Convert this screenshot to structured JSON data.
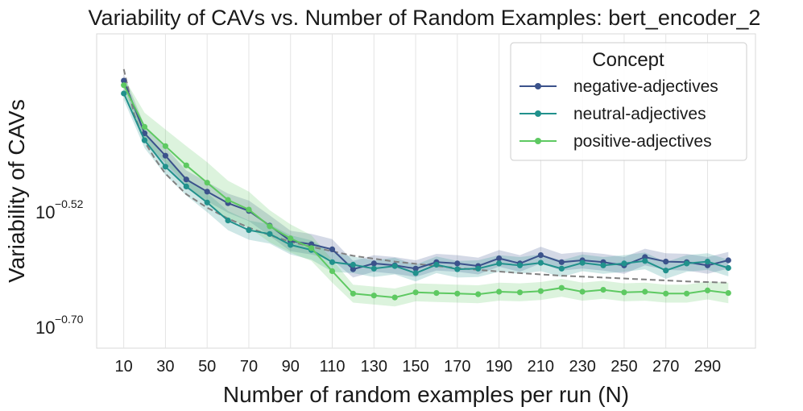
{
  "chart_data": {
    "type": "line",
    "title": "Variability of CAVs vs. Number of Random Examples: bert_encoder_2",
    "xlabel": "Number of random examples per run (N)",
    "ylabel": "Variability of CAVs",
    "yscale": "log10",
    "ylim_log10": [
      -0.735,
      -0.245
    ],
    "xlim": [
      -3,
      313
    ],
    "xticks": [
      10,
      30,
      50,
      70,
      90,
      110,
      130,
      150,
      170,
      190,
      210,
      230,
      250,
      270,
      290
    ],
    "yticks": [
      {
        "value_log10": -0.52,
        "base": "10",
        "exponent": "−0.52"
      },
      {
        "value_log10": -0.7,
        "base": "10",
        "exponent": "−0.70"
      }
    ],
    "grid": true,
    "x": [
      10,
      20,
      30,
      40,
      50,
      60,
      70,
      80,
      90,
      100,
      110,
      120,
      130,
      140,
      150,
      160,
      170,
      180,
      190,
      200,
      210,
      220,
      230,
      240,
      250,
      260,
      270,
      280,
      290,
      300
    ],
    "series": [
      {
        "name": "negative-adjectives",
        "color": "#3b528b",
        "log10_values": [
          -0.318,
          -0.4,
          -0.435,
          -0.472,
          -0.491,
          -0.509,
          -0.521,
          -0.544,
          -0.568,
          -0.573,
          -0.581,
          -0.612,
          -0.603,
          -0.606,
          -0.611,
          -0.601,
          -0.603,
          -0.607,
          -0.595,
          -0.603,
          -0.59,
          -0.601,
          -0.598,
          -0.601,
          -0.606,
          -0.593,
          -0.6,
          -0.601,
          -0.606,
          -0.598
        ],
        "band_halfwidth": [
          0.01,
          0.012,
          0.013,
          0.014,
          0.015,
          0.015,
          0.016,
          0.016,
          0.016,
          0.016,
          0.016,
          0.013,
          0.013,
          0.013,
          0.013,
          0.013,
          0.013,
          0.013,
          0.013,
          0.013,
          0.013,
          0.013,
          0.013,
          0.013,
          0.013,
          0.013,
          0.013,
          0.013,
          0.013,
          0.013
        ]
      },
      {
        "name": "neutral-adjectives",
        "color": "#21918c",
        "log10_values": [
          -0.338,
          -0.411,
          -0.452,
          -0.483,
          -0.508,
          -0.536,
          -0.551,
          -0.557,
          -0.574,
          -0.582,
          -0.601,
          -0.605,
          -0.611,
          -0.607,
          -0.618,
          -0.605,
          -0.612,
          -0.611,
          -0.603,
          -0.606,
          -0.602,
          -0.611,
          -0.602,
          -0.606,
          -0.603,
          -0.599,
          -0.614,
          -0.603,
          -0.6,
          -0.61
        ],
        "band_halfwidth": [
          0.01,
          0.012,
          0.013,
          0.014,
          0.015,
          0.015,
          0.015,
          0.015,
          0.015,
          0.015,
          0.015,
          0.013,
          0.013,
          0.013,
          0.013,
          0.013,
          0.013,
          0.013,
          0.013,
          0.013,
          0.013,
          0.013,
          0.013,
          0.013,
          0.013,
          0.013,
          0.013,
          0.013,
          0.013,
          0.013
        ]
      },
      {
        "name": "positive-adjectives",
        "color": "#5ec962",
        "log10_values": [
          -0.325,
          -0.39,
          -0.42,
          -0.45,
          -0.477,
          -0.504,
          -0.519,
          -0.545,
          -0.564,
          -0.579,
          -0.615,
          -0.65,
          -0.653,
          -0.656,
          -0.648,
          -0.649,
          -0.65,
          -0.651,
          -0.647,
          -0.648,
          -0.646,
          -0.641,
          -0.647,
          -0.644,
          -0.648,
          -0.647,
          -0.65,
          -0.65,
          -0.645,
          -0.649
        ],
        "band_halfwidth": [
          0.012,
          0.022,
          0.026,
          0.03,
          0.032,
          0.03,
          0.028,
          0.025,
          0.022,
          0.02,
          0.018,
          0.014,
          0.014,
          0.014,
          0.014,
          0.014,
          0.014,
          0.014,
          0.014,
          0.014,
          0.014,
          0.014,
          0.014,
          0.014,
          0.014,
          0.014,
          0.014,
          0.014,
          0.014,
          0.016
        ]
      }
    ],
    "fit_curve": {
      "name": "fit",
      "style": "dashed",
      "color": "#808080",
      "x": [
        10,
        15,
        20,
        25,
        30,
        40,
        50,
        60,
        70,
        80,
        90,
        100,
        120,
        140,
        160,
        180,
        200,
        220,
        240,
        260,
        280,
        300
      ],
      "log10_values": [
        -0.3,
        -0.371,
        -0.413,
        -0.44,
        -0.463,
        -0.495,
        -0.516,
        -0.533,
        -0.547,
        -0.559,
        -0.569,
        -0.577,
        -0.591,
        -0.6,
        -0.607,
        -0.613,
        -0.618,
        -0.622,
        -0.625,
        -0.628,
        -0.631,
        -0.633
      ]
    },
    "legend": {
      "title": "Concept",
      "placement": "top-right"
    }
  }
}
